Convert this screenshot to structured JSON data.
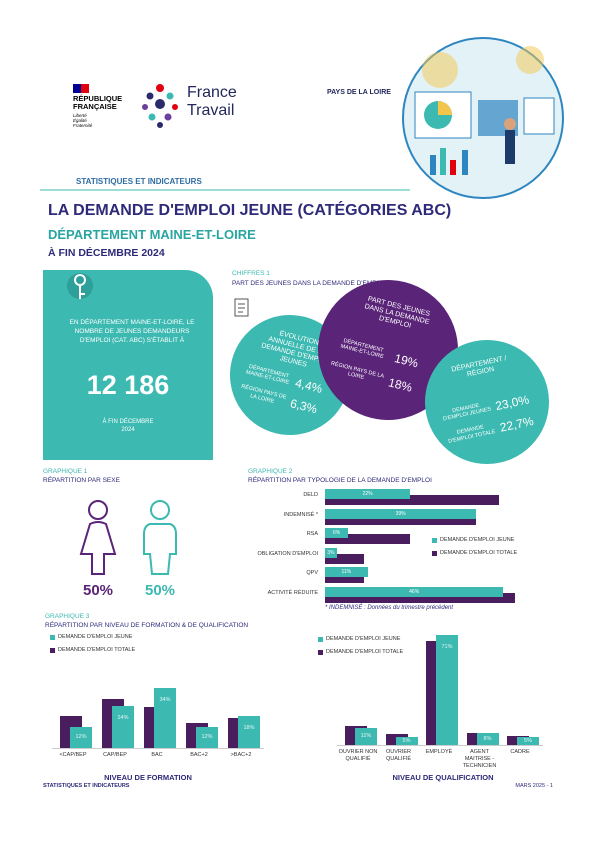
{
  "header": {
    "republique": [
      "RÉPUBLIQUE",
      "FRANÇAISE"
    ],
    "devise": [
      "Liberté",
      "Égalité",
      "Fraternité"
    ],
    "brand": [
      "France",
      "Travail"
    ],
    "region": "PAYS DE LA LOIRE",
    "section": "STATISTIQUES ET INDICATEURS"
  },
  "title": "LA DEMANDE D'EMPLOI JEUNE (CATÉGORIES ABC)",
  "subtitle": "DÉPARTEMENT MAINE-ET-LOIRE",
  "date": "À FIN DÉCEMBRE 2024",
  "key_figure": {
    "text": "EN DÉPARTEMENT MAINE-ET-LOIRE, LE NOMBRE DE JEUNES DEMANDEURS D'EMPLOI (CAT. ABC) S'ÉTABLIT À",
    "value": "12 186",
    "date": [
      "À FIN DÉCEMBRE",
      "2024"
    ]
  },
  "figures": {
    "label": "CHIFFRES 1",
    "title": "PART DES JEUNES DANS LA DEMANDE D'EMPLOI",
    "bubbles": [
      {
        "title": "ÉVOLUTION ANNUELLE DE LA DEMANDE D'EMPLOI JEUNES",
        "rows": [
          {
            "label": "DÉPARTEMENT MAINE-ET-LOIRE",
            "value": "4,4%"
          },
          {
            "label": "RÉGION PAYS DE LA LOIRE",
            "value": "6,3%"
          }
        ]
      },
      {
        "title": "PART DES JEUNES DANS LA DEMANDE D'EMPLOI",
        "rows": [
          {
            "label": "DÉPARTEMENT MAINE-ET-LOIRE",
            "value": "19%"
          },
          {
            "label": "RÉGION PAYS DE LA LOIRE",
            "value": "18%"
          }
        ]
      },
      {
        "title": "DÉPARTEMENT / RÉGION",
        "rows": [
          {
            "label": "DEMANDE D'EMPLOI JEUNES",
            "value": "23,0%"
          },
          {
            "label": "DEMANDE D'EMPLOI TOTALE",
            "value": "22,7%"
          }
        ]
      }
    ]
  },
  "graph1": {
    "label": "GRAPHIQUE 1",
    "title": "RÉPARTITION PAR SEXE",
    "values": [
      "50%",
      "50%"
    ]
  },
  "chart_data": [
    {
      "type": "hbar",
      "label": "GRAPHIQUE 2",
      "title": "RÉPARTITION PAR TYPOLOGIE DE LA DEMANDE D'EMPLOI",
      "categories": [
        "DELD",
        "INDEMNISÉ *",
        "RSA",
        "OBLIGATION D'EMPLOI",
        "QPV",
        "ACTIVITÉ RÉDUITE"
      ],
      "series": [
        {
          "name": "DEMANDE D'EMPLOI JEUNE",
          "color": "#3cb9b1",
          "values": [
            22,
            39,
            6,
            3,
            11,
            46
          ],
          "value_labels": [
            "22%",
            "39%",
            "6%",
            "3%",
            "11%",
            "46%"
          ]
        },
        {
          "name": "DEMANDE D'EMPLOI TOTALE",
          "color": "#4a1d5e",
          "values": [
            45,
            39,
            22,
            10,
            10,
            49
          ]
        }
      ],
      "note": "* INDEMNISÉ : Données du trimestre précédent"
    },
    {
      "type": "bar",
      "label": "GRAPHIQUE 3",
      "title": "RÉPARTITION PAR NIVEAU DE FORMATION & DE QUALIFICATION",
      "categories": [
        "<CAP/BEP",
        "CAP/BEP",
        "BAC",
        "BAC+2",
        ">BAC+2"
      ],
      "series": [
        {
          "name": "DEMANDE D'EMPLOI JEUNE",
          "color": "#3cb9b1",
          "values": [
            12,
            24,
            34,
            12,
            18
          ],
          "value_labels": [
            "12%",
            "24%",
            "34%",
            "12%",
            "18%"
          ]
        },
        {
          "name": "DEMANDE D'EMPLOI TOTALE",
          "color": "#4a1d5e",
          "values": [
            18,
            28,
            23,
            14,
            17
          ]
        }
      ],
      "xlabel": "NIVEAU DE FORMATION"
    },
    {
      "type": "bar",
      "categories": [
        "OUVRIER NON QUALIFIÉ",
        "OUVRIER QUALIFIÉ",
        "EMPLOYÉ",
        "AGENT MAITRISE - TECHNICIEN",
        "CADRE"
      ],
      "series": [
        {
          "name": "DEMANDE D'EMPLOI JEUNE",
          "color": "#3cb9b1",
          "values": [
            11,
            5,
            71,
            8,
            5
          ],
          "value_labels": [
            "11%",
            "5%",
            "71%",
            "8%",
            "5%"
          ]
        },
        {
          "name": "DEMANDE D'EMPLOI TOTALE",
          "color": "#4a1d5e",
          "values": [
            12,
            7,
            67,
            8,
            6
          ]
        }
      ],
      "xlabel": "NIVEAU DE QUALIFICATION"
    }
  ],
  "footer": {
    "left": "STATISTIQUES ET INDICATEURS",
    "right": "MARS 2025 - 1"
  }
}
